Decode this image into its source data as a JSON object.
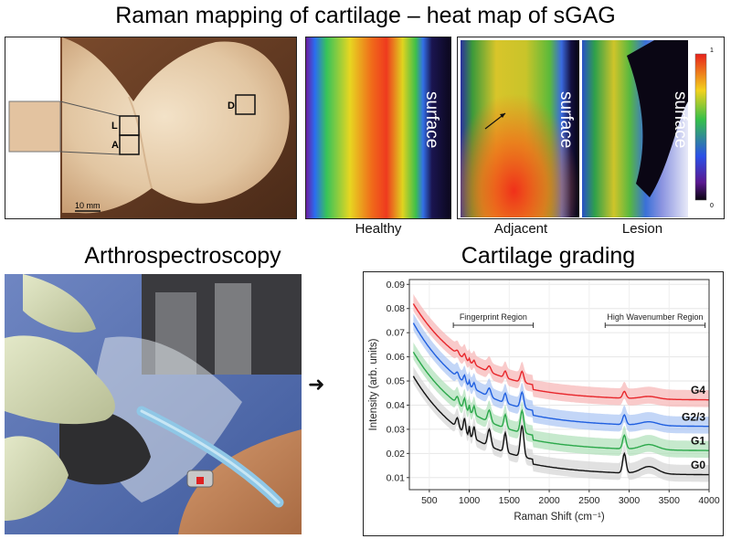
{
  "top_title": "Raman mapping of cartilage – heat map of sGAG",
  "bottom_left_title": "Arthrospectroscopy",
  "bottom_right_title": "Cartilage grading",
  "photo": {
    "scale_bar": "10 mm",
    "markers": [
      "L",
      "A",
      "D"
    ]
  },
  "heatmaps": {
    "panels": [
      "Healthy",
      "Adjacent",
      "Lesion"
    ],
    "surface_label": "surface",
    "colorbar_max": "1",
    "colorbar_min": "0"
  },
  "arrow_glyph": "➜",
  "chart_data": {
    "type": "line",
    "xlabel": "Raman Shift (cm⁻¹)",
    "ylabel": "Intensity (arb. units)",
    "xlim": [
      250,
      4000
    ],
    "ylim": [
      0.005,
      0.092
    ],
    "xticks": [
      500,
      1000,
      1500,
      2000,
      2500,
      3000,
      3500,
      4000
    ],
    "yticks": [
      0.01,
      0.02,
      0.03,
      0.04,
      0.05,
      0.06,
      0.07,
      0.08,
      0.09
    ],
    "regions": [
      {
        "label": "Fingerprint Region",
        "x": [
          800,
          1800
        ]
      },
      {
        "label": "High Wavenumber Region",
        "x": [
          2700,
          3950
        ]
      }
    ],
    "series": [
      {
        "name": "G4",
        "color": "#e8262b",
        "band": "#f6b3b4"
      },
      {
        "name": "G2/3",
        "color": "#1f5fe0",
        "band": "#a9c4f3"
      },
      {
        "name": "G1",
        "color": "#2ba84a",
        "band": "#aee0b8"
      },
      {
        "name": "G0",
        "color": "#111111",
        "band": "#d4d4d4"
      }
    ]
  }
}
